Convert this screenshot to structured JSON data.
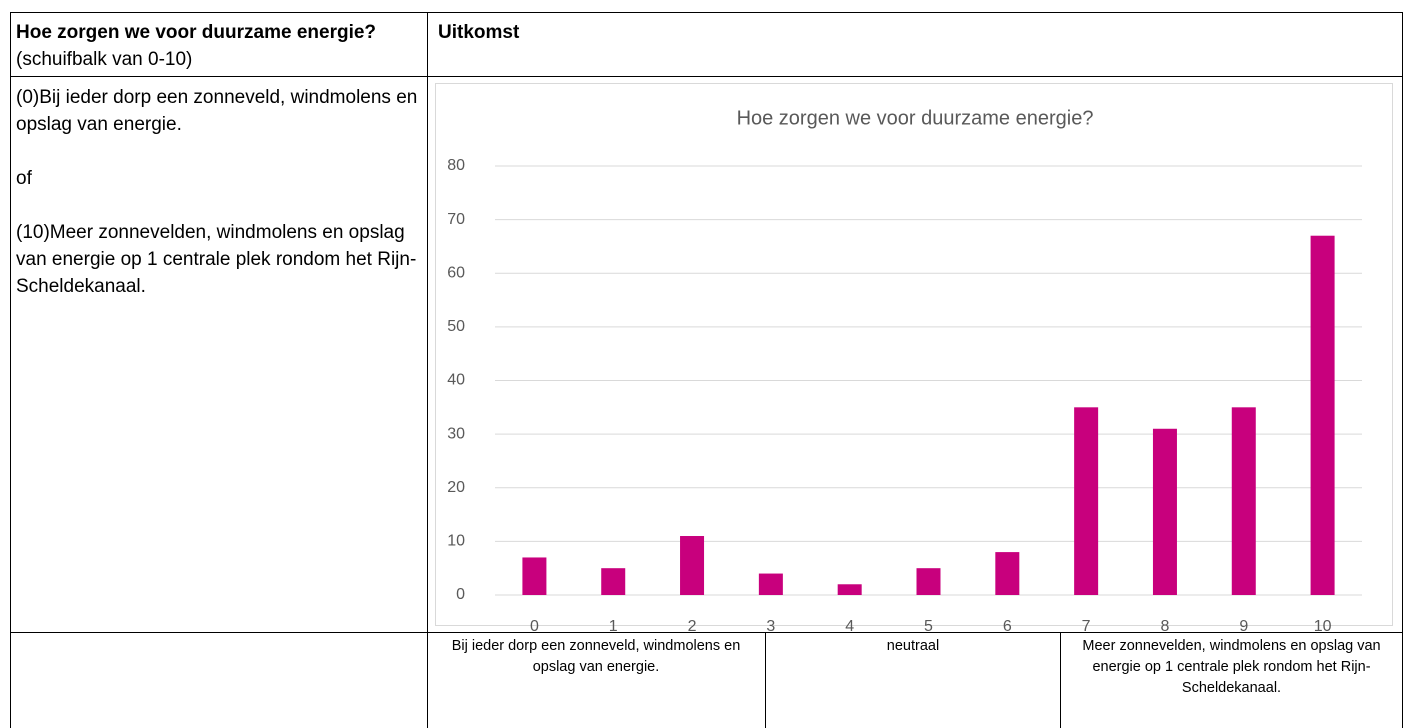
{
  "table": {
    "header": {
      "question": "Hoe zorgen we voor duurzame energie?",
      "note": "(schuifbalk van 0-10)",
      "result": "Uitkomst"
    },
    "options": [
      "(0)Bij ieder dorp een zonneveld, windmolens en opslag van energie.",
      "of",
      "(10)Meer zonnevelden, windmolens en opslag van energie op 1 centrale plek rondom het Rijn-Scheldekanaal."
    ],
    "scale_labels": [
      "Bij ieder dorp een zonneveld, windmolens en opslag van energie.",
      "neutraal",
      "Meer zonnevelden, windmolens en opslag van energie op 1 centrale plek rondom het Rijn-Scheldekanaal."
    ]
  },
  "chart_data": {
    "type": "bar",
    "title": "Hoe zorgen we voor duurzame energie?",
    "categories": [
      "0",
      "1",
      "2",
      "3",
      "4",
      "5",
      "6",
      "7",
      "8",
      "9",
      "10"
    ],
    "values": [
      7,
      5,
      11,
      4,
      2,
      5,
      8,
      35,
      31,
      35,
      67
    ],
    "color": "#c8007d",
    "ylim": [
      0,
      80
    ],
    "yticks": [
      0,
      10,
      20,
      30,
      40,
      50,
      60,
      70,
      80
    ],
    "grid": true
  }
}
